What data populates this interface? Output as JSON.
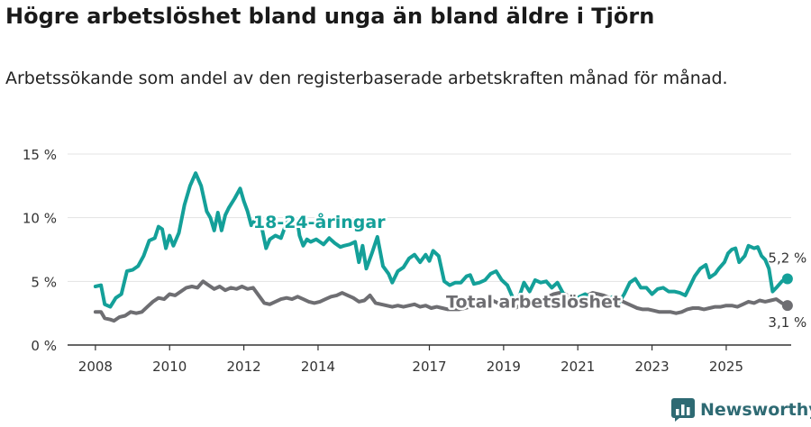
{
  "title": "Högre arbetslöshet bland unga än bland äldre i Tjörn",
  "subtitle": "Arbetssökande som andel av den registerbaserade arbetskraften månad för månad.",
  "brand": {
    "name": "Newsworthy"
  },
  "colors": {
    "youth": "#14a099",
    "total": "#6e6e72",
    "grid": "#e3e3e3",
    "axis": "#333333",
    "brand": "#2e6a73"
  },
  "chart_data": {
    "type": "line",
    "xlabel": "",
    "ylabel": "",
    "xlim": [
      2007.25,
      2026.75
    ],
    "ylim": [
      0,
      15
    ],
    "y_ticks": [
      {
        "value": 0,
        "label": "0 %"
      },
      {
        "value": 5,
        "label": "5 %"
      },
      {
        "value": 10,
        "label": "10 %"
      },
      {
        "value": 15,
        "label": "15 %"
      }
    ],
    "x_ticks": [
      {
        "value": 2008,
        "label": "2008"
      },
      {
        "value": 2010,
        "label": "2010"
      },
      {
        "value": 2012,
        "label": "2012"
      },
      {
        "value": 2014,
        "label": "2014"
      },
      {
        "value": 2017,
        "label": "2017"
      },
      {
        "value": 2019,
        "label": "2019"
      },
      {
        "value": 2021,
        "label": "2021"
      },
      {
        "value": 2023,
        "label": "2023"
      },
      {
        "value": 2025,
        "label": "2025"
      }
    ],
    "grid": true,
    "series": [
      {
        "name": "18-24-åringar",
        "key": "youth",
        "label_position": [
          2012.25,
          9.2
        ],
        "end_label": "5,2 %",
        "points": [
          [
            2008.0,
            4.6
          ],
          [
            2008.15,
            4.7
          ],
          [
            2008.25,
            3.2
          ],
          [
            2008.4,
            3.0
          ],
          [
            2008.55,
            3.7
          ],
          [
            2008.7,
            4.0
          ],
          [
            2008.85,
            5.8
          ],
          [
            2009.0,
            5.9
          ],
          [
            2009.15,
            6.2
          ],
          [
            2009.3,
            7.0
          ],
          [
            2009.45,
            8.2
          ],
          [
            2009.6,
            8.4
          ],
          [
            2009.7,
            9.3
          ],
          [
            2009.8,
            9.1
          ],
          [
            2009.9,
            7.6
          ],
          [
            2010.0,
            8.6
          ],
          [
            2010.1,
            7.8
          ],
          [
            2010.25,
            8.8
          ],
          [
            2010.4,
            11.0
          ],
          [
            2010.55,
            12.5
          ],
          [
            2010.7,
            13.5
          ],
          [
            2010.85,
            12.5
          ],
          [
            2011.0,
            10.5
          ],
          [
            2011.1,
            10.0
          ],
          [
            2011.2,
            9.0
          ],
          [
            2011.3,
            10.4
          ],
          [
            2011.4,
            9.0
          ],
          [
            2011.5,
            10.2
          ],
          [
            2011.6,
            10.8
          ],
          [
            2011.75,
            11.5
          ],
          [
            2011.9,
            12.3
          ],
          [
            2012.0,
            11.3
          ],
          [
            2012.1,
            10.5
          ],
          [
            2012.2,
            9.4
          ],
          [
            2012.3,
            9.8
          ],
          [
            2012.4,
            9.7
          ],
          [
            2012.5,
            9.0
          ],
          [
            2012.6,
            7.6
          ],
          [
            2012.7,
            8.3
          ],
          [
            2012.85,
            8.6
          ],
          [
            2013.0,
            8.4
          ],
          [
            2013.1,
            9.2
          ],
          [
            2013.2,
            9.8
          ],
          [
            2013.3,
            9.9
          ],
          [
            2013.38,
            9.2
          ],
          [
            2013.45,
            9.6
          ],
          [
            2013.5,
            8.6
          ],
          [
            2013.6,
            7.8
          ],
          [
            2013.7,
            8.3
          ],
          [
            2013.8,
            8.1
          ],
          [
            2013.95,
            8.3
          ],
          [
            2014.05,
            8.1
          ],
          [
            2014.15,
            7.9
          ],
          [
            2014.3,
            8.4
          ],
          [
            2014.45,
            8.0
          ],
          [
            2014.6,
            7.7
          ],
          [
            2014.7,
            7.8
          ],
          [
            2014.85,
            7.9
          ],
          [
            2015.0,
            8.1
          ],
          [
            2015.1,
            6.5
          ],
          [
            2015.2,
            7.8
          ],
          [
            2015.3,
            6.0
          ],
          [
            2015.45,
            7.2
          ],
          [
            2015.6,
            8.5
          ],
          [
            2015.75,
            6.2
          ],
          [
            2015.9,
            5.6
          ],
          [
            2016.0,
            4.9
          ],
          [
            2016.15,
            5.8
          ],
          [
            2016.3,
            6.1
          ],
          [
            2016.45,
            6.8
          ],
          [
            2016.6,
            7.1
          ],
          [
            2016.75,
            6.5
          ],
          [
            2016.9,
            7.1
          ],
          [
            2017.0,
            6.6
          ],
          [
            2017.1,
            7.4
          ],
          [
            2017.25,
            7.0
          ],
          [
            2017.4,
            5.0
          ],
          [
            2017.55,
            4.7
          ],
          [
            2017.7,
            4.9
          ],
          [
            2017.85,
            4.9
          ],
          [
            2018.0,
            5.4
          ],
          [
            2018.1,
            5.5
          ],
          [
            2018.2,
            4.8
          ],
          [
            2018.35,
            4.9
          ],
          [
            2018.5,
            5.1
          ],
          [
            2018.65,
            5.6
          ],
          [
            2018.8,
            5.8
          ],
          [
            2018.95,
            5.1
          ],
          [
            2019.1,
            4.7
          ],
          [
            2019.25,
            3.7
          ],
          [
            2019.4,
            3.6
          ],
          [
            2019.55,
            4.9
          ],
          [
            2019.7,
            4.2
          ],
          [
            2019.85,
            5.1
          ],
          [
            2020.0,
            4.9
          ],
          [
            2020.15,
            5.0
          ],
          [
            2020.3,
            4.5
          ],
          [
            2020.45,
            4.9
          ],
          [
            2020.6,
            4.1
          ],
          [
            2020.75,
            3.5
          ],
          [
            2020.9,
            3.5
          ],
          [
            2021.05,
            3.8
          ],
          [
            2021.2,
            4.0
          ],
          [
            2021.35,
            3.6
          ],
          [
            2021.5,
            3.1
          ],
          [
            2021.65,
            3.5
          ],
          [
            2021.8,
            3.5
          ],
          [
            2021.95,
            3.8
          ],
          [
            2022.1,
            3.3
          ],
          [
            2022.25,
            4.0
          ],
          [
            2022.4,
            4.9
          ],
          [
            2022.55,
            5.2
          ],
          [
            2022.7,
            4.5
          ],
          [
            2022.85,
            4.5
          ],
          [
            2023.0,
            4.0
          ],
          [
            2023.15,
            4.4
          ],
          [
            2023.3,
            4.5
          ],
          [
            2023.45,
            4.2
          ],
          [
            2023.6,
            4.2
          ],
          [
            2023.75,
            4.1
          ],
          [
            2023.9,
            3.9
          ],
          [
            2024.0,
            4.5
          ],
          [
            2024.15,
            5.4
          ],
          [
            2024.3,
            6.0
          ],
          [
            2024.45,
            6.3
          ],
          [
            2024.55,
            5.3
          ],
          [
            2024.7,
            5.6
          ],
          [
            2024.8,
            6.0
          ],
          [
            2024.95,
            6.5
          ],
          [
            2025.05,
            7.2
          ],
          [
            2025.15,
            7.5
          ],
          [
            2025.25,
            7.6
          ],
          [
            2025.35,
            6.5
          ],
          [
            2025.5,
            7.0
          ],
          [
            2025.6,
            7.8
          ],
          [
            2025.75,
            7.6
          ],
          [
            2025.85,
            7.7
          ],
          [
            2025.95,
            7.0
          ],
          [
            2026.05,
            6.7
          ],
          [
            2026.15,
            6.0
          ],
          [
            2026.25,
            4.2
          ],
          [
            2026.35,
            4.5
          ],
          [
            2026.5,
            5.0
          ],
          [
            2026.6,
            5.2
          ],
          [
            2026.65,
            5.2
          ]
        ]
      },
      {
        "name": "Total arbetslöshet",
        "key": "total",
        "label_position": [
          2017.45,
          2.95
        ],
        "end_label": "3,1 %",
        "points": [
          [
            2008.0,
            2.6
          ],
          [
            2008.15,
            2.6
          ],
          [
            2008.25,
            2.1
          ],
          [
            2008.4,
            2.0
          ],
          [
            2008.5,
            1.9
          ],
          [
            2008.65,
            2.2
          ],
          [
            2008.8,
            2.3
          ],
          [
            2008.95,
            2.6
          ],
          [
            2009.1,
            2.5
          ],
          [
            2009.25,
            2.6
          ],
          [
            2009.4,
            3.0
          ],
          [
            2009.55,
            3.4
          ],
          [
            2009.7,
            3.7
          ],
          [
            2009.85,
            3.6
          ],
          [
            2010.0,
            4.0
          ],
          [
            2010.15,
            3.9
          ],
          [
            2010.3,
            4.2
          ],
          [
            2010.45,
            4.5
          ],
          [
            2010.6,
            4.6
          ],
          [
            2010.75,
            4.5
          ],
          [
            2010.9,
            5.0
          ],
          [
            2011.05,
            4.7
          ],
          [
            2011.2,
            4.4
          ],
          [
            2011.35,
            4.6
          ],
          [
            2011.5,
            4.3
          ],
          [
            2011.65,
            4.5
          ],
          [
            2011.8,
            4.4
          ],
          [
            2011.95,
            4.6
          ],
          [
            2012.1,
            4.4
          ],
          [
            2012.25,
            4.5
          ],
          [
            2012.4,
            3.9
          ],
          [
            2012.55,
            3.3
          ],
          [
            2012.7,
            3.2
          ],
          [
            2012.85,
            3.4
          ],
          [
            2013.0,
            3.6
          ],
          [
            2013.15,
            3.7
          ],
          [
            2013.3,
            3.6
          ],
          [
            2013.45,
            3.8
          ],
          [
            2013.6,
            3.6
          ],
          [
            2013.75,
            3.4
          ],
          [
            2013.9,
            3.3
          ],
          [
            2014.05,
            3.4
          ],
          [
            2014.2,
            3.6
          ],
          [
            2014.35,
            3.8
          ],
          [
            2014.5,
            3.9
          ],
          [
            2014.65,
            4.1
          ],
          [
            2014.8,
            3.9
          ],
          [
            2014.95,
            3.7
          ],
          [
            2015.1,
            3.4
          ],
          [
            2015.25,
            3.5
          ],
          [
            2015.4,
            3.9
          ],
          [
            2015.55,
            3.3
          ],
          [
            2015.7,
            3.2
          ],
          [
            2015.85,
            3.1
          ],
          [
            2016.0,
            3.0
          ],
          [
            2016.15,
            3.1
          ],
          [
            2016.3,
            3.0
          ],
          [
            2016.45,
            3.1
          ],
          [
            2016.6,
            3.2
          ],
          [
            2016.75,
            3.0
          ],
          [
            2016.9,
            3.1
          ],
          [
            2017.05,
            2.9
          ],
          [
            2017.2,
            3.0
          ],
          [
            2017.35,
            2.9
          ],
          [
            2017.5,
            2.8
          ],
          [
            2017.65,
            2.8
          ],
          [
            2017.8,
            2.8
          ],
          [
            2017.95,
            2.9
          ],
          [
            2018.1,
            3.0
          ],
          [
            2018.25,
            3.2
          ],
          [
            2018.4,
            3.3
          ],
          [
            2018.55,
            3.5
          ],
          [
            2018.7,
            3.5
          ],
          [
            2018.85,
            3.3
          ],
          [
            2019.0,
            3.2
          ],
          [
            2019.15,
            3.0
          ],
          [
            2019.3,
            2.9
          ],
          [
            2019.45,
            3.1
          ],
          [
            2019.6,
            3.3
          ],
          [
            2019.75,
            3.5
          ],
          [
            2019.9,
            3.6
          ],
          [
            2020.05,
            3.6
          ],
          [
            2020.2,
            3.8
          ],
          [
            2020.35,
            4.0
          ],
          [
            2020.5,
            4.1
          ],
          [
            2020.65,
            4.0
          ],
          [
            2020.8,
            3.8
          ],
          [
            2020.95,
            3.6
          ],
          [
            2021.1,
            3.7
          ],
          [
            2021.25,
            3.9
          ],
          [
            2021.4,
            4.1
          ],
          [
            2021.55,
            4.0
          ],
          [
            2021.7,
            3.9
          ],
          [
            2021.85,
            3.7
          ],
          [
            2022.0,
            3.6
          ],
          [
            2022.15,
            3.5
          ],
          [
            2022.3,
            3.3
          ],
          [
            2022.45,
            3.1
          ],
          [
            2022.6,
            2.9
          ],
          [
            2022.75,
            2.8
          ],
          [
            2022.9,
            2.8
          ],
          [
            2023.05,
            2.7
          ],
          [
            2023.2,
            2.6
          ],
          [
            2023.35,
            2.6
          ],
          [
            2023.5,
            2.6
          ],
          [
            2023.65,
            2.5
          ],
          [
            2023.8,
            2.6
          ],
          [
            2023.95,
            2.8
          ],
          [
            2024.1,
            2.9
          ],
          [
            2024.25,
            2.9
          ],
          [
            2024.4,
            2.8
          ],
          [
            2024.55,
            2.9
          ],
          [
            2024.7,
            3.0
          ],
          [
            2024.85,
            3.0
          ],
          [
            2025.0,
            3.1
          ],
          [
            2025.15,
            3.1
          ],
          [
            2025.3,
            3.0
          ],
          [
            2025.45,
            3.2
          ],
          [
            2025.6,
            3.4
          ],
          [
            2025.75,
            3.3
          ],
          [
            2025.9,
            3.5
          ],
          [
            2026.05,
            3.4
          ],
          [
            2026.2,
            3.5
          ],
          [
            2026.35,
            3.6
          ],
          [
            2026.5,
            3.3
          ],
          [
            2026.65,
            3.1
          ]
        ]
      }
    ]
  }
}
